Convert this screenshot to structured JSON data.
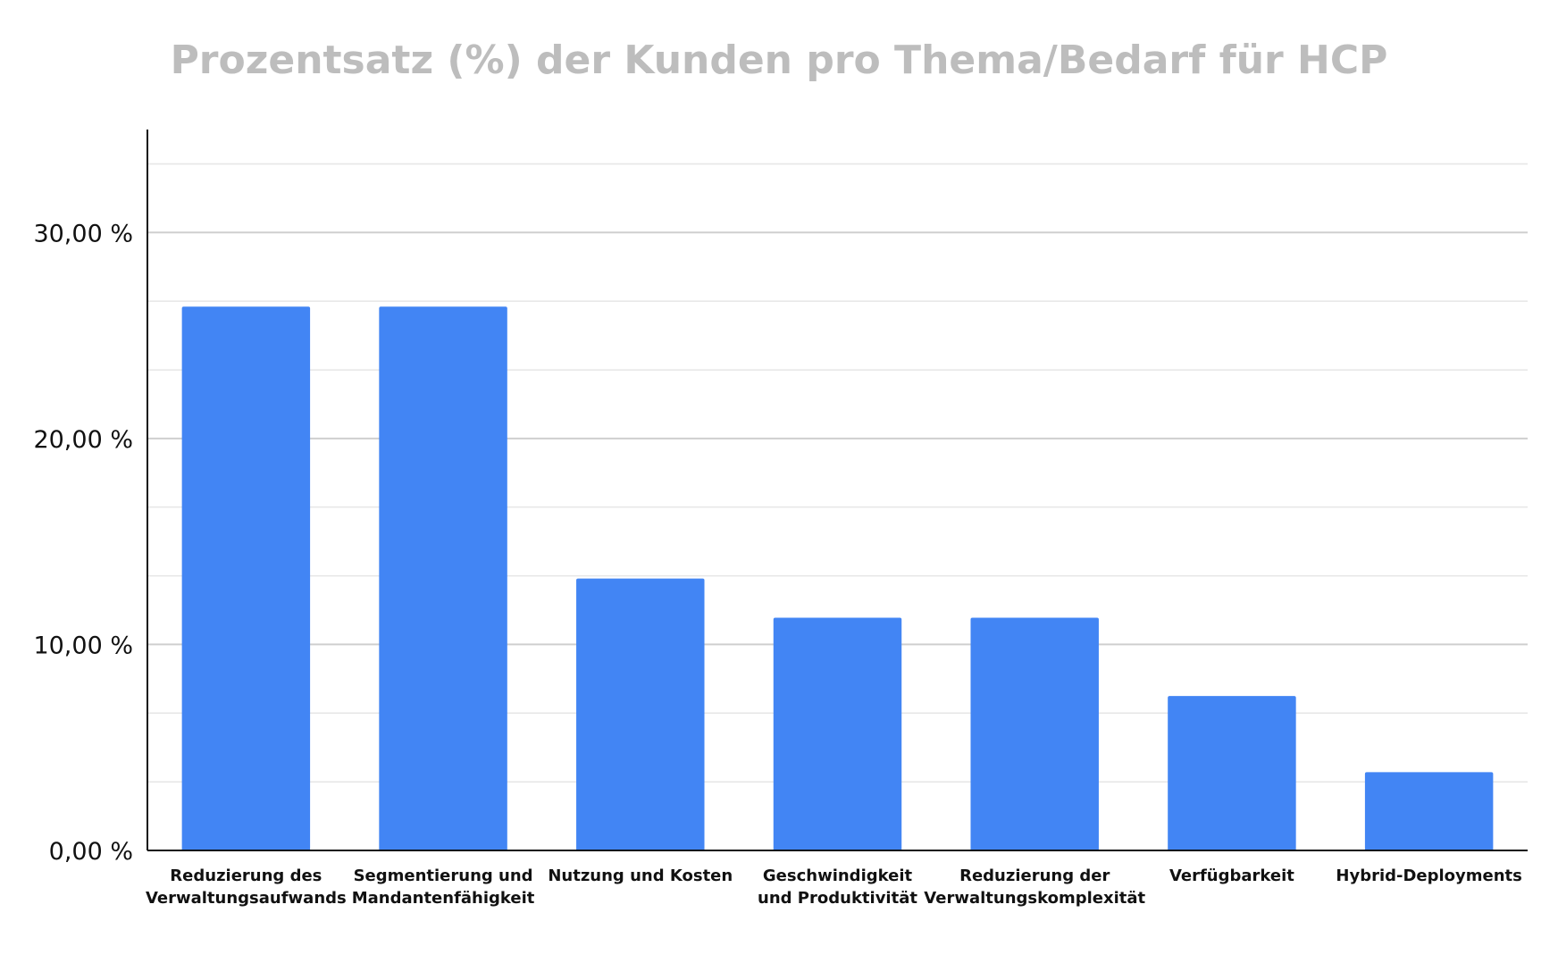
{
  "chart_data": {
    "type": "bar",
    "title": "Prozentsatz (%) der Kunden pro Thema/Bedarf für HCP",
    "xlabel": "",
    "ylabel": "",
    "categories": [
      [
        "Reduzierung des",
        "Verwaltungsaufwands"
      ],
      [
        "Segmentierung und",
        "Mandantenfähigkeit"
      ],
      [
        "Nutzung und Kosten"
      ],
      [
        "Geschwindigkeit",
        "und Produktivität"
      ],
      [
        "Reduzierung der",
        "Verwaltungskomplexität"
      ],
      [
        "Verfügbarkeit"
      ],
      [
        "Hybrid-Deployments"
      ]
    ],
    "values": [
      26.4,
      26.4,
      13.2,
      11.3,
      11.3,
      7.5,
      3.8
    ],
    "ylim": [
      0,
      35
    ],
    "yticks": [
      {
        "value": 0,
        "label": "0,00 %"
      },
      {
        "value": 10,
        "label": "10,00 %"
      },
      {
        "value": 20,
        "label": "20,00 %"
      },
      {
        "value": 30,
        "label": "30,00 %"
      }
    ],
    "minor_gridlines": [
      3.33,
      6.67,
      13.33,
      16.67,
      23.33,
      26.67,
      33.33
    ],
    "grid": true,
    "bar_color": "#4285f4"
  }
}
